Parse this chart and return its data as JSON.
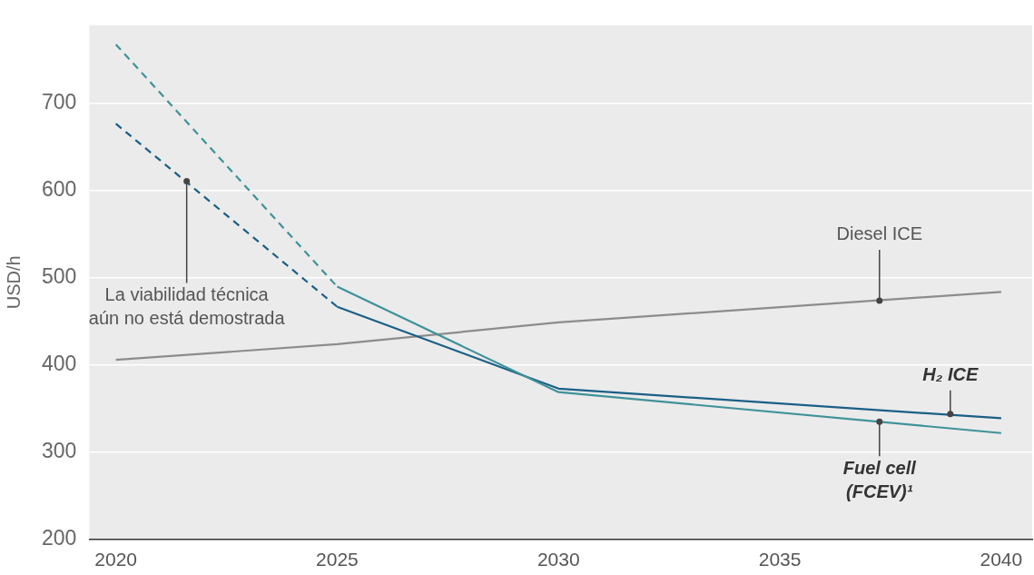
{
  "chart_data": {
    "type": "line",
    "ylabel": "USD/h",
    "xlim": [
      2019.4,
      2040.7
    ],
    "xticks": [
      2020,
      2025,
      2030,
      2035,
      2040
    ],
    "ylim": [
      200,
      790
    ],
    "yticks": [
      200,
      300,
      400,
      500,
      600,
      700
    ],
    "grid": "y",
    "legend": false,
    "marker": "none",
    "series": [
      {
        "color": "#3f9299",
        "line_style": "dashed",
        "x": [
          2020,
          2025
        ],
        "values": [
          768,
          490
        ]
      },
      {
        "color": "#3f9299",
        "line_style": "solid",
        "x": [
          2025,
          2030,
          2040
        ],
        "values": [
          490,
          369,
          322
        ]
      },
      {
        "color": "#1a5f86",
        "line_style": "dashed",
        "x": [
          2020,
          2025
        ],
        "values": [
          677,
          467
        ]
      },
      {
        "color": "#1a5f86",
        "line_style": "solid",
        "x": [
          2025,
          2030,
          2040
        ],
        "values": [
          467,
          373,
          339
        ]
      },
      {
        "color": "#8c8c8c",
        "line_style": "solid",
        "x": [
          2020,
          2025,
          2030,
          2040
        ],
        "values": [
          406,
          424,
          449,
          484
        ]
      }
    ],
    "annotations": [
      {
        "text": "La viabilidad técnica\naún no está demostrada",
        "x": 2021.6,
        "y": 611
      },
      {
        "text": "Diesel ICE",
        "x": 2037.25,
        "y": 474
      },
      {
        "text": "H₂ ICE",
        "x": 2038.85,
        "y": 344
      },
      {
        "text": "Fuel cell\n(FCEV)¹",
        "x": 2037.25,
        "y": 335
      }
    ]
  }
}
